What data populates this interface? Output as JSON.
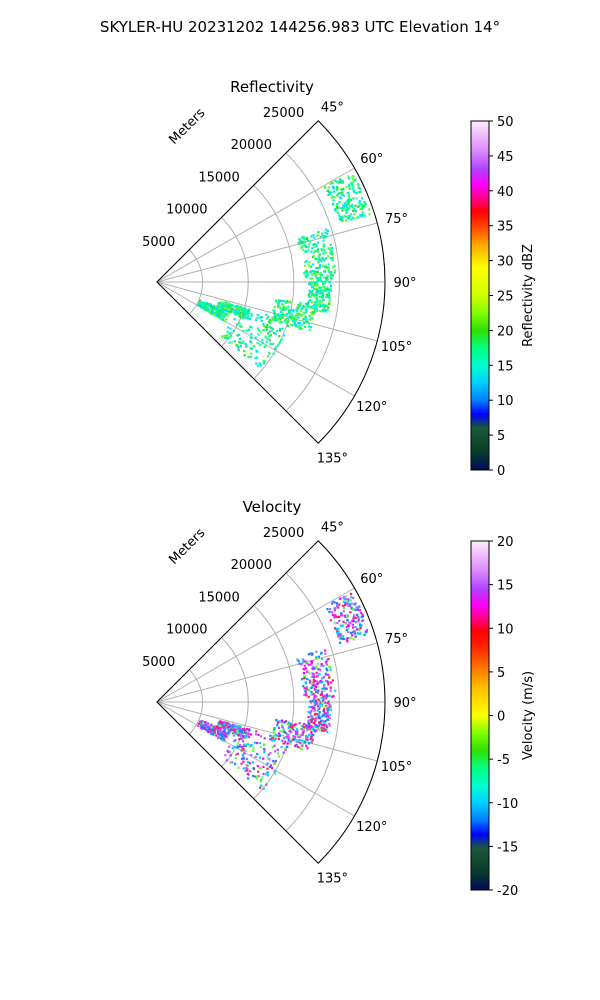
{
  "suptitle": "SKYLER-HU  20231202  144256.983 UTC Elevation 14°",
  "chart_data": [
    {
      "type": "polar-sector",
      "title": "Reflectivity",
      "radial_label": "Meters",
      "radial_ticks": [
        5000,
        10000,
        15000,
        20000,
        25000
      ],
      "r_max": 25000,
      "theta_ticks": [
        "45°",
        "60°",
        "75°",
        "90°",
        "105°",
        "120°",
        "135°"
      ],
      "theta_range_deg": [
        45,
        135
      ],
      "colorbar": {
        "label": "Reflectivity dBZ",
        "min": 0,
        "max": 50,
        "ticks": [
          0,
          5,
          10,
          15,
          20,
          25,
          30,
          35,
          40,
          45,
          50
        ]
      },
      "echo_bands": [
        {
          "theta": [
            60,
            72
          ],
          "r": [
            21000,
            24500
          ]
        },
        {
          "theta": [
            72,
            88
          ],
          "r": [
            16000,
            19500
          ]
        },
        {
          "theta": [
            88,
            100
          ],
          "r": [
            16500,
            19000
          ]
        },
        {
          "theta": [
            98,
            108
          ],
          "r": [
            13000,
            17500
          ]
        },
        {
          "theta": [
            106,
            130
          ],
          "r": [
            9000,
            15000
          ]
        },
        {
          "theta": [
            106,
            112
          ],
          "r": [
            7000,
            10500
          ]
        },
        {
          "theta": [
            112,
            120
          ],
          "r": [
            5000,
            8500
          ]
        }
      ]
    },
    {
      "type": "polar-sector",
      "title": "Velocity",
      "radial_label": "Meters",
      "radial_ticks": [
        5000,
        10000,
        15000,
        20000,
        25000
      ],
      "r_max": 25000,
      "theta_ticks": [
        "45°",
        "60°",
        "75°",
        "90°",
        "105°",
        "120°",
        "135°"
      ],
      "theta_range_deg": [
        45,
        135
      ],
      "colorbar": {
        "label": "Velocity (m/s)",
        "min": -20,
        "max": 20,
        "ticks": [
          -20,
          -15,
          -10,
          -5,
          0,
          5,
          10,
          15,
          20
        ]
      },
      "echo_bands": [
        {
          "theta": [
            60,
            72
          ],
          "r": [
            21000,
            24500
          ]
        },
        {
          "theta": [
            72,
            88
          ],
          "r": [
            16000,
            19500
          ]
        },
        {
          "theta": [
            88,
            100
          ],
          "r": [
            16500,
            19000
          ]
        },
        {
          "theta": [
            98,
            108
          ],
          "r": [
            13000,
            17500
          ]
        },
        {
          "theta": [
            106,
            130
          ],
          "r": [
            9000,
            15000
          ]
        },
        {
          "theta": [
            106,
            112
          ],
          "r": [
            7000,
            10500
          ]
        },
        {
          "theta": [
            112,
            120
          ],
          "r": [
            5000,
            8500
          ]
        }
      ]
    }
  ]
}
